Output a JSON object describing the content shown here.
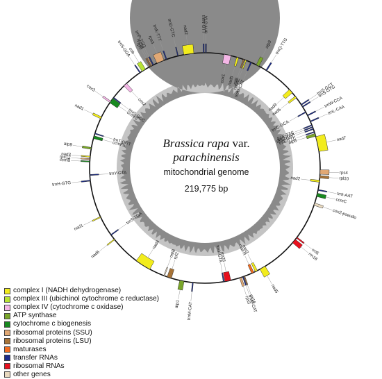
{
  "title": {
    "species": "Brassica rapa",
    "rank": "var.",
    "variety": "parachinensis",
    "genome": "mitochondrial genome",
    "size": "219,775 bp"
  },
  "colors": {
    "complex_I": "#f2ec1d",
    "complex_III": "#b8e335",
    "complex_IV": "#f4b6e6",
    "atp": "#7aa62a",
    "cyt_c": "#17891f",
    "ssu": "#e1a874",
    "lsu": "#a87438",
    "maturase": "#f26b1f",
    "trna": "#1a2b8c",
    "rrna": "#e8101e",
    "other": "#e8d9bf",
    "gc_dark": "#8a8a8a",
    "gc_light": "#c4c4c4"
  },
  "legend": [
    {
      "label": "complex I (NADH dehydrogenase)",
      "color": "#f2ec1d"
    },
    {
      "label": "complex III (ubichinol cytochrome c reductase)",
      "color": "#b8e335"
    },
    {
      "label": "complex IV (cytochrome c oxidase)",
      "color": "#f4b6e6"
    },
    {
      "label": "ATP synthase",
      "color": "#7aa62a"
    },
    {
      "label": "cytochrome c biogenesis",
      "color": "#17891f"
    },
    {
      "label": "ribosomal proteins (SSU)",
      "color": "#e1a874"
    },
    {
      "label": "ribosomal proteins (LSU)",
      "color": "#a87438"
    },
    {
      "label": "maturases",
      "color": "#f26b1f"
    },
    {
      "label": "transfer RNAs",
      "color": "#1a2b8c"
    },
    {
      "label": "ribosomal RNAs",
      "color": "#e8101e"
    },
    {
      "label": "other genes",
      "color": "#e8d9bf"
    }
  ],
  "genes": [
    {
      "name": "trnD-GTC",
      "a": 346.5,
      "w": 0.4,
      "side": "out",
      "cat": "trna"
    },
    {
      "name": "nad2",
      "a": 352,
      "w": 5,
      "side": "out",
      "cat": "complex_I"
    },
    {
      "name": "trnN-GTT",
      "a": 359.4,
      "w": 0.5,
      "side": "out",
      "cat": "trna"
    },
    {
      "name": "trnY-GTA",
      "a": 0.5,
      "w": 0.5,
      "side": "out",
      "cat": "trna"
    },
    {
      "name": "cox1",
      "a": 11.3,
      "w": 3.5,
      "side": "in",
      "cat": "complex_IV"
    },
    {
      "name": "nad5",
      "a": 16.5,
      "w": 1,
      "side": "in",
      "cat": "complex_I"
    },
    {
      "name": "rpl5",
      "a": 19.7,
      "w": 0.6,
      "side": "in",
      "cat": "lsu"
    },
    {
      "name": "nad4L",
      "a": 20.8,
      "w": 0.6,
      "side": "in",
      "cat": "complex_I"
    },
    {
      "name": "trnM-CAT",
      "a": 23.6,
      "w": 0.6,
      "side": "in",
      "cat": "trna"
    },
    {
      "name": "atp9",
      "a": 27.2,
      "w": 1.5,
      "side": "out",
      "cat": "atp"
    },
    {
      "name": "trnQ-TTG",
      "a": 32.2,
      "w": 0.6,
      "side": "out",
      "cat": "trna"
    },
    {
      "name": "nad9",
      "a": 48.2,
      "w": 2.2,
      "side": "in",
      "cat": "complex_I"
    },
    {
      "name": "nad5",
      "a": 52,
      "w": 1,
      "side": "in",
      "cat": "complex_I"
    },
    {
      "name": "trnS-GCT",
      "a": 56.7,
      "w": 0.5,
      "side": "out",
      "cat": "trna"
    },
    {
      "name": "trnS-GTG",
      "a": 57.9,
      "w": 0.5,
      "side": "out",
      "cat": "trna"
    },
    {
      "name": "trnW-CCA",
      "a": 62.9,
      "w": 0.5,
      "side": "out",
      "cat": "trna"
    },
    {
      "name": "trnL-CAA",
      "a": 66.2,
      "w": 0.5,
      "side": "out",
      "cat": "trna"
    },
    {
      "name": "trnE-TTC",
      "a": 68.2,
      "w": 0.5,
      "side": "in",
      "cat": "trna"
    },
    {
      "name": "trnS-TGA",
      "a": 69.2,
      "w": 0.5,
      "side": "in",
      "cat": "trna"
    },
    {
      "name": "trnG-GCC",
      "a": 70.2,
      "w": 0.5,
      "side": "in",
      "cat": "trna"
    },
    {
      "name": "atp8",
      "a": 73.3,
      "w": 1.4,
      "side": "in",
      "cat": "atp"
    },
    {
      "name": "nad7",
      "a": 78,
      "w": 7.5,
      "side": "out",
      "cat": "complex_I"
    },
    {
      "name": "rps4",
      "a": 92,
      "w": 2.2,
      "side": "out",
      "cat": "ssu"
    },
    {
      "name": "rpl10",
      "a": 94.4,
      "w": 1.2,
      "side": "out",
      "cat": "lsu"
    },
    {
      "name": "nad2",
      "a": 96.6,
      "w": 1,
      "side": "in",
      "cat": "complex_I"
    },
    {
      "name": "trnI-AAT",
      "a": 101,
      "w": 0.5,
      "side": "out",
      "cat": "trna"
    },
    {
      "name": "ccmC",
      "a": 103.5,
      "w": 1.7,
      "side": "out",
      "cat": "cyt_c"
    },
    {
      "name": "cox2-pseudo",
      "a": 108.3,
      "w": 1.2,
      "side": "out",
      "cat": "other"
    },
    {
      "name": "rrn5",
      "a": 127.2,
      "w": 0.6,
      "side": "out",
      "cat": "rrna"
    },
    {
      "name": "rrn18",
      "a": 129.4,
      "w": 2.2,
      "side": "out",
      "cat": "rrna"
    },
    {
      "name": "nad5",
      "a": 150,
      "w": 3,
      "side": "out",
      "cat": "complex_I"
    },
    {
      "name": "mat-R",
      "a": 155.5,
      "w": 1.2,
      "side": "in",
      "cat": "maturase"
    },
    {
      "name": "nad1",
      "a": 153.5,
      "w": 1.2,
      "side": "in",
      "cat": "complex_I"
    },
    {
      "name": "rpl16",
      "a": 160,
      "w": 0.5,
      "side": "out",
      "cat": "lsu"
    },
    {
      "name": "trnM-CAT",
      "a": 160.7,
      "w": 0.5,
      "side": "out",
      "cat": "trna"
    },
    {
      "name": "rps3",
      "a": 162,
      "w": 1,
      "side": "out",
      "cat": "ssu"
    },
    {
      "name": "rrn26",
      "a": 168.5,
      "w": 3,
      "side": "in",
      "cat": "rrna"
    },
    {
      "name": "trnY-GTA",
      "a": 170.6,
      "w": 0.5,
      "side": "in",
      "cat": "trna"
    },
    {
      "name": "trnM-CAT",
      "a": 186,
      "w": 0.5,
      "side": "out",
      "cat": "trna"
    },
    {
      "name": "atp1",
      "a": 191.5,
      "w": 2.2,
      "side": "out",
      "cat": "atp"
    },
    {
      "name": "rpl2",
      "a": 198,
      "w": 2.2,
      "side": "in",
      "cat": "lsu"
    },
    {
      "name": "mttB",
      "a": 200.7,
      "w": 0.5,
      "side": "in",
      "cat": "other"
    },
    {
      "name": "nad4",
      "a": 212.5,
      "w": 8,
      "side": "in",
      "cat": "complex_I"
    },
    {
      "name": "nad6",
      "a": 231.7,
      "w": 0.5,
      "side": "out",
      "cat": "complex_I"
    },
    {
      "name": "trnS-TGA",
      "a": 234.5,
      "w": 0.5,
      "side": "in",
      "cat": "trna"
    },
    {
      "name": "nad1",
      "a": 244.8,
      "w": 0.5,
      "side": "out",
      "cat": "complex_I"
    },
    {
      "name": "trnH-GTG",
      "a": 263.7,
      "w": 0.5,
      "side": "out",
      "cat": "trna"
    },
    {
      "name": "trnY-GTA",
      "a": 266.5,
      "w": 0.5,
      "side": "in",
      "cat": "trna"
    },
    {
      "name": "ccmB",
      "a": 273.2,
      "w": 0.5,
      "side": "out",
      "cat": "cyt_c"
    },
    {
      "name": "rps12",
      "a": 274.4,
      "w": 0.5,
      "side": "out",
      "cat": "ssu"
    },
    {
      "name": "nad3",
      "a": 275.6,
      "w": 0.5,
      "side": "out",
      "cat": "complex_I"
    },
    {
      "name": "atp9",
      "a": 279.8,
      "w": 0.9,
      "side": "out",
      "cat": "atp"
    },
    {
      "name": "ccmFn",
      "a": 285.5,
      "w": 1.4,
      "side": "in",
      "cat": "cyt_c"
    },
    {
      "name": "trnT-GGT",
      "a": 287.4,
      "w": 0.5,
      "side": "in",
      "cat": "trna"
    },
    {
      "name": "nad1",
      "a": 295.8,
      "w": 1,
      "side": "out",
      "cat": "complex_I"
    },
    {
      "name": "cox3",
      "a": 305,
      "w": 0.8,
      "side": "out",
      "cat": "complex_IV"
    },
    {
      "name": "ccmFc",
      "a": 305.8,
      "w": 2.7,
      "side": "in",
      "cat": "cyt_c"
    },
    {
      "name": "trnG-GCC",
      "a": 307.6,
      "w": 0.5,
      "side": "in",
      "cat": "trna"
    },
    {
      "name": "cox2",
      "a": 316.3,
      "w": 1.8,
      "side": "in",
      "cat": "complex_IV"
    },
    {
      "name": "trnS-GGA",
      "a": 325.8,
      "w": 0.5,
      "side": "out",
      "cat": "trna"
    },
    {
      "name": "cob",
      "a": 328,
      "w": 2,
      "side": "out",
      "cat": "complex_III"
    },
    {
      "name": "rpl5",
      "a": 331.8,
      "w": 0.5,
      "side": "out",
      "cat": "lsu"
    },
    {
      "name": "rps14",
      "a": 332.6,
      "w": 0.5,
      "side": "out",
      "cat": "ssu"
    },
    {
      "name": "trnP-TGG",
      "a": 333.4,
      "w": 0.5,
      "side": "out",
      "cat": "trna"
    },
    {
      "name": "rps3",
      "a": 337.3,
      "w": 3.8,
      "side": "out",
      "cat": "ssu"
    },
    {
      "name": "trnK-TTT",
      "a": 340.5,
      "w": 0.5,
      "side": "out",
      "cat": "trna"
    },
    {
      "name": "trnC-GCA",
      "a": 61,
      "w": 0.5,
      "side": "in",
      "cat": "trna"
    },
    {
      "name": "trnE-TTC",
      "a": 71.8,
      "w": 0.5,
      "side": "in",
      "cat": "trna"
    }
  ]
}
